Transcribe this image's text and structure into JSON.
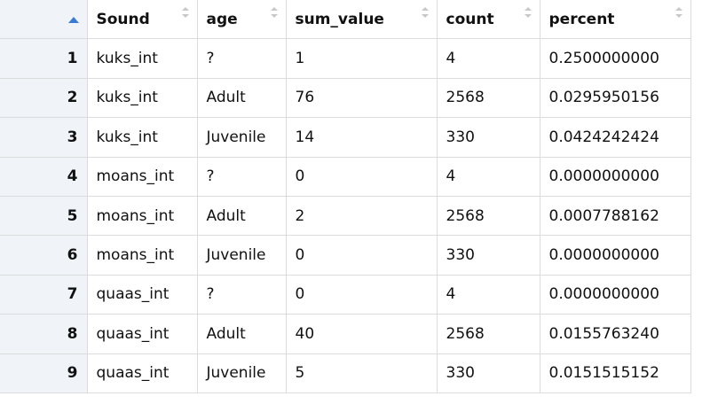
{
  "table": {
    "columns": [
      "Sound",
      "age",
      "sum_value",
      "count",
      "percent"
    ],
    "rows": [
      [
        "1",
        "kuks_int",
        "?",
        "1",
        "4",
        "0.2500000000"
      ],
      [
        "2",
        "kuks_int",
        "Adult",
        "76",
        "2568",
        "0.0295950156"
      ],
      [
        "3",
        "kuks_int",
        "Juvenile",
        "14",
        "330",
        "0.0424242424"
      ],
      [
        "4",
        "moans_int",
        "?",
        "0",
        "4",
        "0.0000000000"
      ],
      [
        "5",
        "moans_int",
        "Adult",
        "2",
        "2568",
        "0.0007788162"
      ],
      [
        "6",
        "moans_int",
        "Juvenile",
        "0",
        "330",
        "0.0000000000"
      ],
      [
        "7",
        "quaas_int",
        "?",
        "0",
        "4",
        "0.0000000000"
      ],
      [
        "8",
        "quaas_int",
        "Adult",
        "40",
        "2568",
        "0.0155763240"
      ],
      [
        "9",
        "quaas_int",
        "Juvenile",
        "5",
        "330",
        "0.0151515152"
      ]
    ]
  }
}
